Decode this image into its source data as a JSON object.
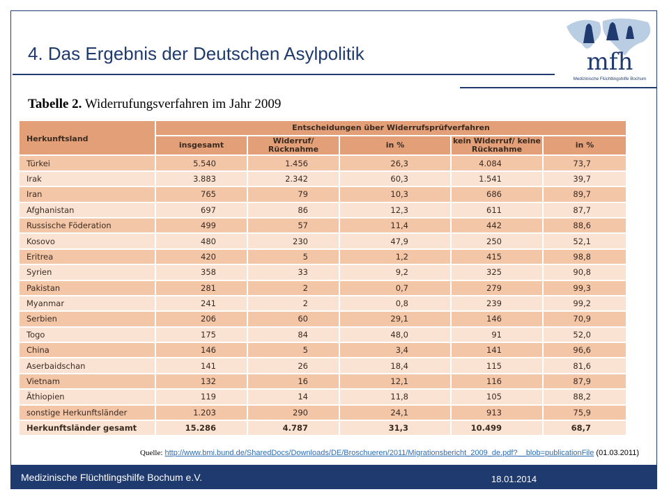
{
  "title": "4. Das Ergebnis der Deutschen Asylpolitik",
  "logo": {
    "text": "mfh",
    "subtitle": "Medizinische Flüchtlingshilfe Bochum"
  },
  "caption": {
    "label": "Tabelle 2.",
    "text": "Widerrufungsverfahren im Jahr 2009"
  },
  "table": {
    "row_header": "Herkunftsland",
    "header_group": "Entscheidungen über Widerrufsprüfverfahren",
    "columns": [
      "insgesamt",
      "Widerruf/ Rücknahme",
      "in %",
      "kein Widerruf/ keine Rücknahme",
      "in %"
    ],
    "rows": [
      [
        "Türkei",
        "5.540",
        "1.456",
        "26,3",
        "4.084",
        "73,7"
      ],
      [
        "Irak",
        "3.883",
        "2.342",
        "60,3",
        "1.541",
        "39,7"
      ],
      [
        "Iran",
        "765",
        "79",
        "10,3",
        "686",
        "89,7"
      ],
      [
        "Afghanistan",
        "697",
        "86",
        "12,3",
        "611",
        "87,7"
      ],
      [
        "Russische Föderation",
        "499",
        "57",
        "11,4",
        "442",
        "88,6"
      ],
      [
        "Kosovo",
        "480",
        "230",
        "47,9",
        "250",
        "52,1"
      ],
      [
        "Eritrea",
        "420",
        "5",
        "1,2",
        "415",
        "98,8"
      ],
      [
        "Syrien",
        "358",
        "33",
        "9,2",
        "325",
        "90,8"
      ],
      [
        "Pakistan",
        "281",
        "2",
        "0,7",
        "279",
        "99,3"
      ],
      [
        "Myanmar",
        "241",
        "2",
        "0,8",
        "239",
        "99,2"
      ],
      [
        "Serbien",
        "206",
        "60",
        "29,1",
        "146",
        "70,9"
      ],
      [
        "Togo",
        "175",
        "84",
        "48,0",
        "91",
        "52,0"
      ],
      [
        "China",
        "146",
        "5",
        "3,4",
        "141",
        "96,6"
      ],
      [
        "Aserbaidschan",
        "141",
        "26",
        "18,4",
        "115",
        "81,6"
      ],
      [
        "Vietnam",
        "132",
        "16",
        "12,1",
        "116",
        "87,9"
      ],
      [
        "Äthiopien",
        "119",
        "14",
        "11,8",
        "105",
        "88,2"
      ],
      [
        "sonstige Herkunftsländer",
        "1.203",
        "290",
        "24,1",
        "913",
        "75,9"
      ],
      [
        "Herkunftsländer gesamt",
        "15.286",
        "4.787",
        "31,3",
        "10.499",
        "68,7"
      ]
    ]
  },
  "source": {
    "label": "Quelle:",
    "url": "http://www.bmi.bund.de/SharedDocs/Downloads/DE/Broschueren/2011/Migrationsbericht_2009_de.pdf?__blob=publicationFile",
    "date": "(01.03.2011)"
  },
  "footer": {
    "organization": "Medizinische Flüchtlingshilfe Bochum e.V.",
    "date": "18.01.2014"
  }
}
